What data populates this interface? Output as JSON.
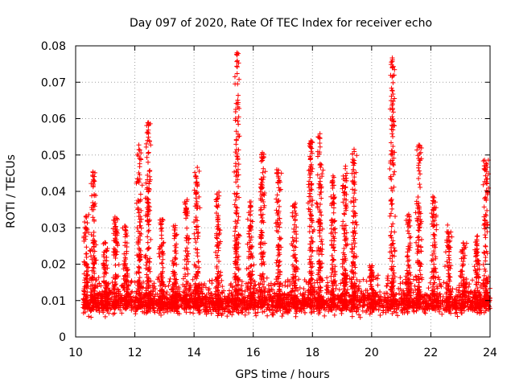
{
  "chart_data": {
    "type": "scatter",
    "title": "Day 097 of 2020, Rate Of TEC Index for receiver echo",
    "xlabel": "GPS time / hours",
    "ylabel": "ROTI / TECUs",
    "xlim": [
      10,
      24
    ],
    "ylim": [
      0,
      0.08
    ],
    "xticks": [
      "10",
      "12",
      "14",
      "16",
      "18",
      "20",
      "22",
      "24"
    ],
    "yticks": [
      "0",
      "0.01",
      "0.02",
      "0.03",
      "0.04",
      "0.05",
      "0.06",
      "0.07",
      "0.08"
    ],
    "grid": true,
    "marker": "+",
    "color": "#ff0000",
    "bursts": [
      {
        "x": 10.35,
        "peak": 0.034
      },
      {
        "x": 10.6,
        "peak": 0.046
      },
      {
        "x": 11.0,
        "peak": 0.026
      },
      {
        "x": 11.35,
        "peak": 0.033
      },
      {
        "x": 11.7,
        "peak": 0.031
      },
      {
        "x": 12.15,
        "peak": 0.053
      },
      {
        "x": 12.45,
        "peak": 0.059
      },
      {
        "x": 12.9,
        "peak": 0.033
      },
      {
        "x": 13.35,
        "peak": 0.031
      },
      {
        "x": 13.75,
        "peak": 0.038
      },
      {
        "x": 14.1,
        "peak": 0.047
      },
      {
        "x": 14.8,
        "peak": 0.04
      },
      {
        "x": 15.45,
        "peak": 0.079
      },
      {
        "x": 15.9,
        "peak": 0.038
      },
      {
        "x": 16.3,
        "peak": 0.052
      },
      {
        "x": 16.85,
        "peak": 0.046
      },
      {
        "x": 17.4,
        "peak": 0.037
      },
      {
        "x": 17.95,
        "peak": 0.054
      },
      {
        "x": 18.25,
        "peak": 0.056
      },
      {
        "x": 18.7,
        "peak": 0.045
      },
      {
        "x": 19.1,
        "peak": 0.047
      },
      {
        "x": 19.4,
        "peak": 0.053
      },
      {
        "x": 20.0,
        "peak": 0.02
      },
      {
        "x": 20.7,
        "peak": 0.078
      },
      {
        "x": 21.25,
        "peak": 0.034
      },
      {
        "x": 21.6,
        "peak": 0.053
      },
      {
        "x": 22.1,
        "peak": 0.039
      },
      {
        "x": 22.6,
        "peak": 0.031
      },
      {
        "x": 23.1,
        "peak": 0.026
      },
      {
        "x": 23.55,
        "peak": 0.028
      },
      {
        "x": 23.85,
        "peak": 0.049
      }
    ]
  }
}
